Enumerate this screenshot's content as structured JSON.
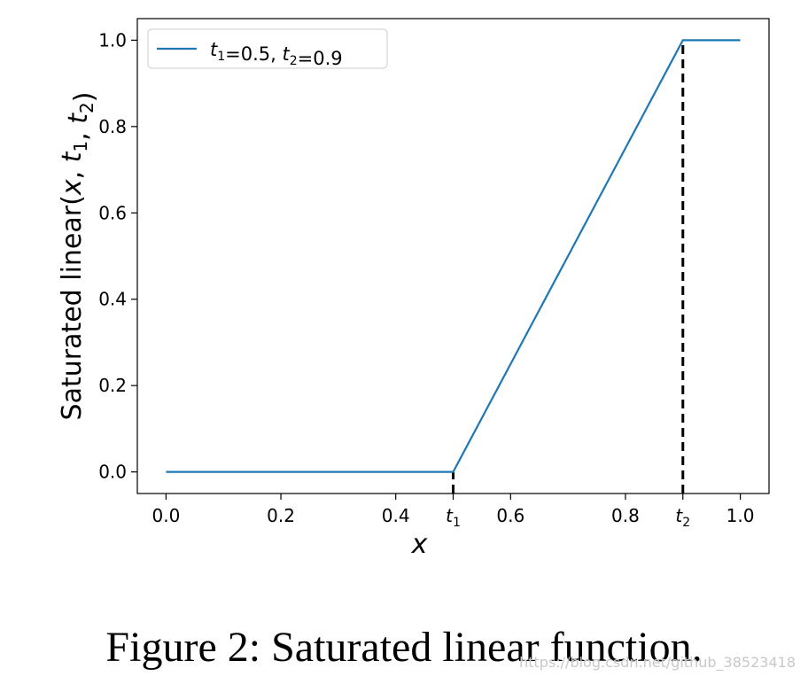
{
  "chart_data": {
    "type": "line",
    "xlabel": "x",
    "ylabel": "Saturated linear(x, t1, t2)",
    "xlim": [
      -0.05,
      1.05
    ],
    "ylim": [
      -0.05,
      1.05
    ],
    "x_ticks": [
      {
        "value": 0.0,
        "label": "0.0"
      },
      {
        "value": 0.2,
        "label": "0.2"
      },
      {
        "value": 0.4,
        "label": "0.4"
      },
      {
        "value": 0.5,
        "label": "t1"
      },
      {
        "value": 0.6,
        "label": "0.6"
      },
      {
        "value": 0.8,
        "label": "0.8"
      },
      {
        "value": 0.9,
        "label": "t2"
      },
      {
        "value": 1.0,
        "label": "1.0"
      }
    ],
    "y_ticks": [
      {
        "value": 0.0,
        "label": "0.0"
      },
      {
        "value": 0.2,
        "label": "0.2"
      },
      {
        "value": 0.4,
        "label": "0.4"
      },
      {
        "value": 0.6,
        "label": "0.6"
      },
      {
        "value": 0.8,
        "label": "0.8"
      },
      {
        "value": 1.0,
        "label": "1.0"
      }
    ],
    "series": [
      {
        "name": "t1=0.5, t2=0.9",
        "color": "#1f77b4",
        "x": [
          0.0,
          0.5,
          0.9,
          1.0
        ],
        "y": [
          0.0,
          0.0,
          1.0,
          1.0
        ]
      }
    ],
    "vlines": [
      {
        "x": 0.5,
        "y": [
          -0.05,
          0.0
        ],
        "style": "dashed",
        "color": "#000000"
      },
      {
        "x": 0.9,
        "y": [
          -0.05,
          1.0
        ],
        "style": "dashed",
        "color": "#000000"
      }
    ],
    "grid": false,
    "legend_position": "top-left"
  },
  "caption": "Figure 2: Saturated linear function.",
  "watermark": "https://blog.csdn.net/github_38523418"
}
